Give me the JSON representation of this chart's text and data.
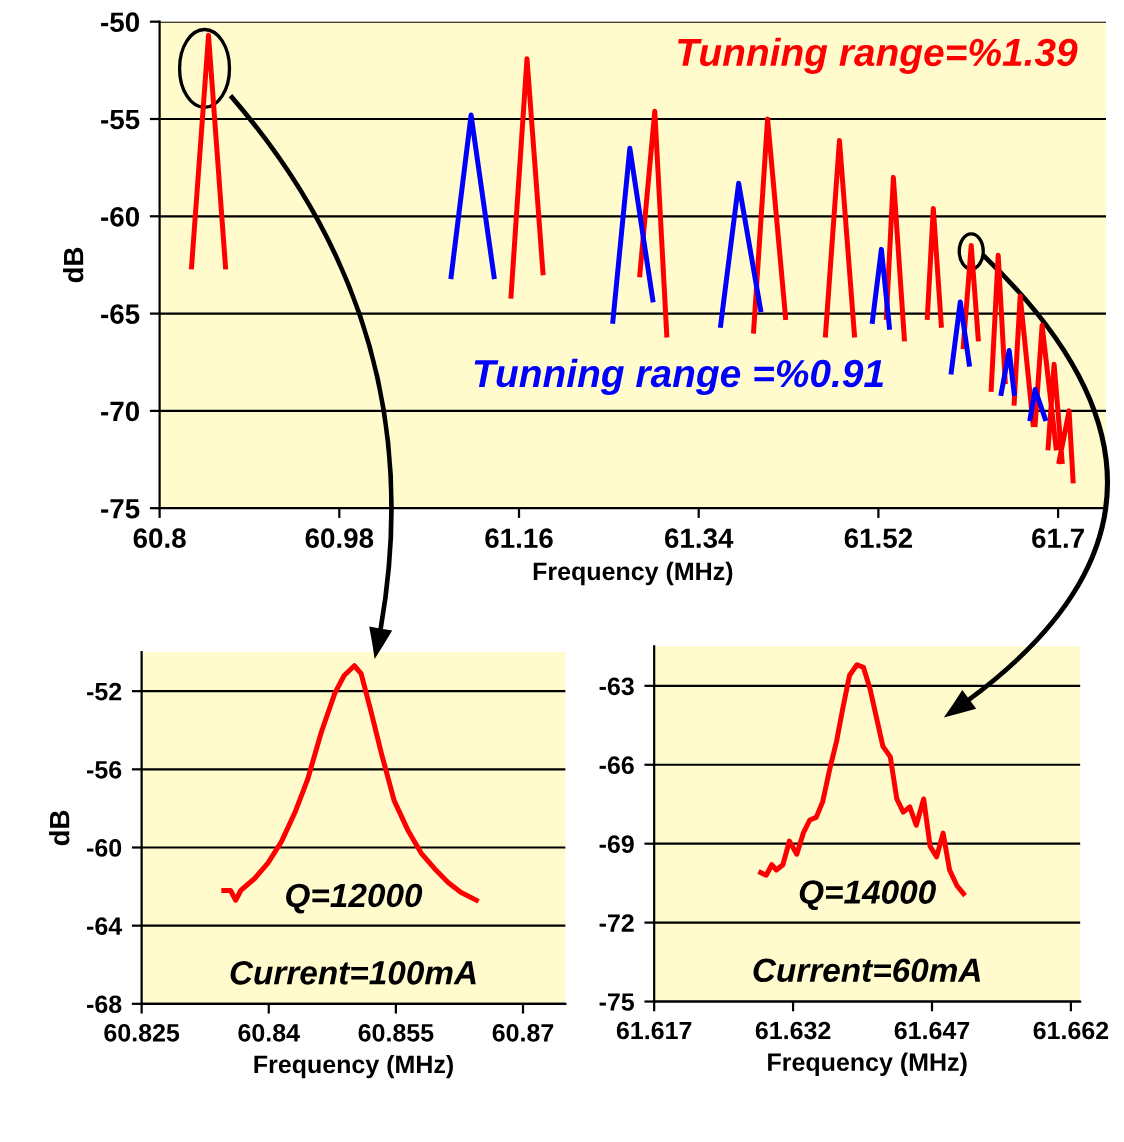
{
  "chart_data": [
    {
      "type": "line",
      "xlabel": "Frequency (MHz)",
      "ylabel": "dB",
      "xlim": [
        60.8,
        61.748
      ],
      "ylim": [
        -75,
        -50
      ],
      "xticks": [
        60.8,
        60.98,
        61.16,
        61.34,
        61.52,
        61.7
      ],
      "yticks": [
        -75,
        -70,
        -65,
        -60,
        -55,
        -50
      ],
      "grid": "y",
      "legend": false,
      "marker": "none",
      "line_style": "solid",
      "series": [
        {
          "name": "Tunning range=%1.39",
          "color": "#ff0000",
          "x": [
            60.832,
            60.849,
            60.866,
            null,
            61.152,
            61.168,
            61.184,
            null,
            61.281,
            61.296,
            61.308,
            null,
            61.395,
            61.409,
            61.427,
            null,
            61.467,
            61.481,
            61.496,
            null,
            61.528,
            61.535,
            61.546,
            null,
            61.569,
            61.575,
            61.583,
            null,
            61.605,
            61.613,
            61.62,
            null,
            61.633,
            61.64,
            61.647,
            null,
            61.656,
            61.662,
            61.675,
            null,
            61.677,
            61.684,
            61.698,
            null,
            61.69,
            61.696,
            61.704,
            null,
            61.701,
            61.711,
            61.715
          ],
          "values": [
            -62.6,
            -50.7,
            -62.6,
            null,
            -64.1,
            -51.9,
            -62.9,
            null,
            -63.0,
            -54.6,
            -66.1,
            null,
            -65.9,
            -55.0,
            -65.2,
            null,
            -66.1,
            -56.1,
            -66.1,
            null,
            -65.2,
            -58.0,
            -66.3,
            null,
            -65.2,
            -59.6,
            -65.6,
            null,
            -66.7,
            -61.5,
            -66.3,
            null,
            -68.9,
            -62.0,
            -68.5,
            null,
            -69.6,
            -64.1,
            -70.7,
            null,
            -70.7,
            -65.6,
            -71.9,
            null,
            -71.9,
            -67.6,
            -72.6,
            null,
            -72.6,
            -70.0,
            -73.6
          ]
        },
        {
          "name": "Tunning range =%0.91",
          "color": "#0000ff",
          "x": [
            61.092,
            61.112,
            61.135,
            null,
            61.254,
            61.271,
            61.294,
            null,
            61.362,
            61.38,
            61.402,
            null,
            61.514,
            61.523,
            61.531,
            null,
            61.593,
            61.602,
            61.611,
            null,
            61.643,
            61.651,
            61.656,
            null,
            61.672,
            61.677,
            61.687
          ],
          "values": [
            -63.1,
            -54.8,
            -63.1,
            null,
            -65.4,
            -56.5,
            -64.3,
            null,
            -65.6,
            -58.3,
            -64.8,
            null,
            -65.4,
            -61.7,
            -65.7,
            null,
            -68.0,
            -64.4,
            -67.6,
            null,
            -69.1,
            -66.9,
            -69.1,
            null,
            -70.4,
            -68.9,
            -70.4
          ]
        }
      ]
    },
    {
      "type": "line",
      "xlabel": "Frequency (MHz)",
      "ylabel": "dB",
      "xlim": [
        60.825,
        60.875
      ],
      "ylim": [
        -68,
        -50
      ],
      "xticks": [
        60.825,
        60.84,
        60.855,
        60.87
      ],
      "yticks": [
        -68,
        -64,
        -60,
        -56,
        -52
      ],
      "grid": "y",
      "legend": false,
      "marker": "none",
      "line_style": "solid",
      "annotations": [
        "Q=12000",
        "Current=100mA"
      ],
      "series": [
        {
          "color": "#ff0000",
          "x": [
            60.8347,
            60.8355,
            60.8361,
            60.8367,
            60.8383,
            60.8399,
            60.8415,
            60.8431,
            60.8446,
            60.8462,
            60.8478,
            60.8489,
            60.8501,
            60.8509,
            60.8521,
            60.8533,
            60.8548,
            60.8564,
            60.858,
            60.8596,
            60.8612,
            60.8627,
            60.8645
          ],
          "values": [
            -62.2,
            -62.2,
            -62.7,
            -62.2,
            -61.6,
            -60.8,
            -59.7,
            -58.2,
            -56.5,
            -54.1,
            -52.1,
            -51.2,
            -50.7,
            -51.1,
            -53.1,
            -55.2,
            -57.6,
            -59.1,
            -60.3,
            -61.1,
            -61.8,
            -62.3,
            -62.7
          ]
        }
      ]
    },
    {
      "type": "line",
      "xlabel": "Frequency (MHz)",
      "xlim": [
        61.617,
        61.663
      ],
      "ylim": [
        -75,
        -61.5
      ],
      "xticks": [
        61.617,
        61.632,
        61.647,
        61.662
      ],
      "yticks": [
        -75,
        -72,
        -69,
        -66,
        -63
      ],
      "grid": "y",
      "legend": false,
      "marker": "none",
      "line_style": "solid",
      "annotations": [
        "Q=14000",
        "Current=60mA"
      ],
      "series": [
        {
          "color": "#ff0000",
          "x": [
            61.6285,
            61.6291,
            61.6297,
            61.6302,
            61.6309,
            61.6316,
            61.6324,
            61.6331,
            61.6338,
            61.6345,
            61.6352,
            61.636,
            61.6367,
            61.6374,
            61.6381,
            61.6389,
            61.6396,
            61.6403,
            61.641,
            61.6417,
            61.6425,
            61.6432,
            61.6439,
            61.6446,
            61.6453,
            61.6461,
            61.6468,
            61.6475,
            61.6482,
            61.6489,
            61.6497,
            61.6504
          ],
          "values": [
            -70.1,
            -70.2,
            -69.8,
            -70.0,
            -69.8,
            -68.9,
            -69.4,
            -68.6,
            -68.1,
            -68.0,
            -67.4,
            -66.1,
            -65.1,
            -63.8,
            -62.6,
            -62.2,
            -62.3,
            -63.1,
            -64.2,
            -65.3,
            -65.7,
            -67.3,
            -67.8,
            -67.6,
            -68.3,
            -67.3,
            -69.1,
            -69.5,
            -68.6,
            -70.0,
            -70.6,
            -70.9
          ]
        }
      ]
    }
  ]
}
